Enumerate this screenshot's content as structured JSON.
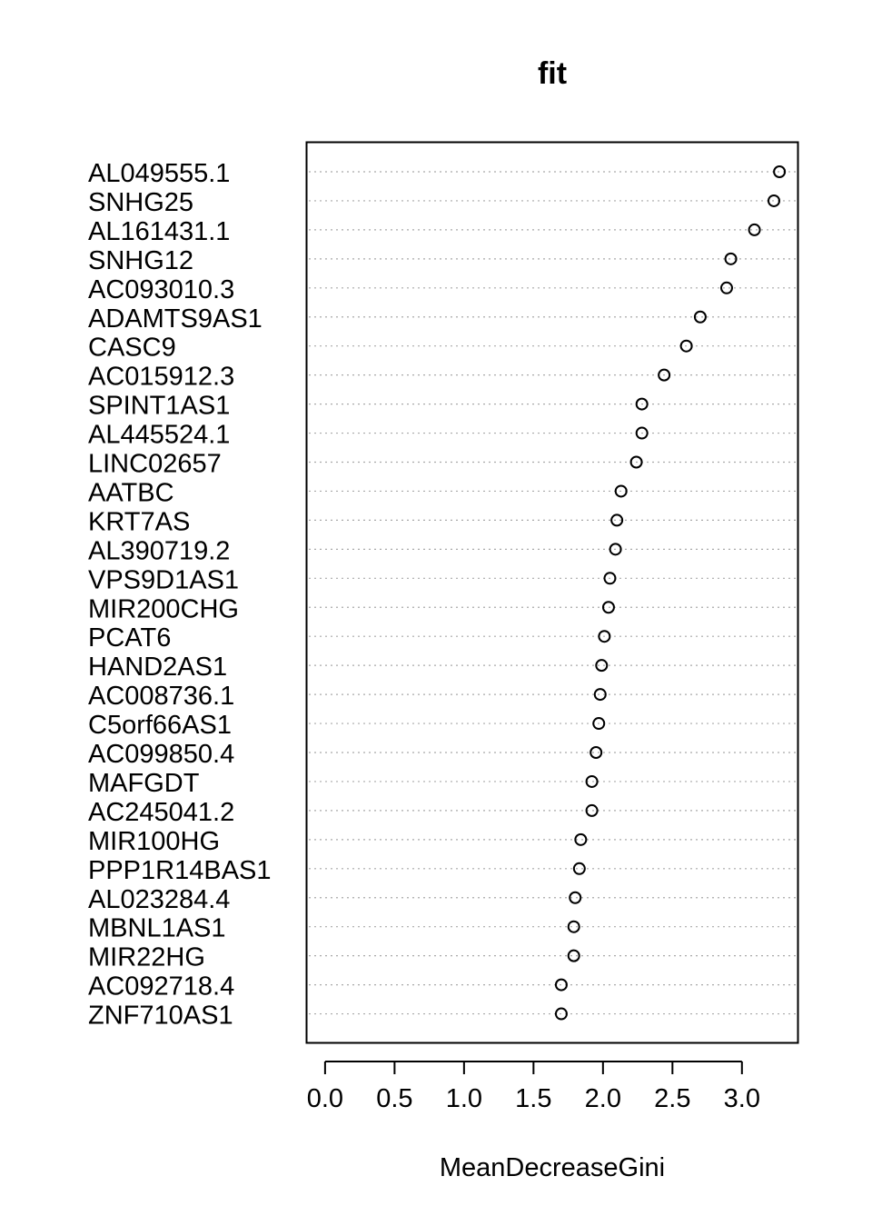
{
  "chart_data": {
    "type": "scatter",
    "title": "fit",
    "xlabel": "MeanDecreaseGini",
    "ylabel": "",
    "xlim": [
      -0.13,
      3.4
    ],
    "xticks": [
      0.0,
      0.5,
      1.0,
      1.5,
      2.0,
      2.5,
      3.0
    ],
    "xtick_labels": [
      "0.0",
      "0.5",
      "1.0",
      "1.5",
      "2.0",
      "2.5",
      "3.0"
    ],
    "grid": "dotted horizontal guide lines per item",
    "categories": [
      "AL049555.1",
      "SNHG25",
      "AL161431.1",
      "SNHG12",
      "AC093010.3",
      "ADAMTS9AS1",
      "CASC9",
      "AC015912.3",
      "SPINT1AS1",
      "AL445524.1",
      "LINC02657",
      "AATBC",
      "KRT7AS",
      "AL390719.2",
      "VPS9D1AS1",
      "MIR200CHG",
      "PCAT6",
      "HAND2AS1",
      "AC008736.1",
      "C5orf66AS1",
      "AC099850.4",
      "MAFGDT",
      "AC245041.2",
      "MIR100HG",
      "PPP1R14BAS1",
      "AL023284.4",
      "MBNL1AS1",
      "MIR22HG",
      "AC092718.4",
      "ZNF710AS1"
    ],
    "values": [
      3.27,
      3.23,
      3.09,
      2.92,
      2.89,
      2.7,
      2.6,
      2.44,
      2.28,
      2.28,
      2.24,
      2.13,
      2.1,
      2.09,
      2.05,
      2.04,
      2.01,
      1.99,
      1.98,
      1.97,
      1.95,
      1.92,
      1.92,
      1.84,
      1.83,
      1.8,
      1.79,
      1.79,
      1.7,
      1.7
    ]
  }
}
